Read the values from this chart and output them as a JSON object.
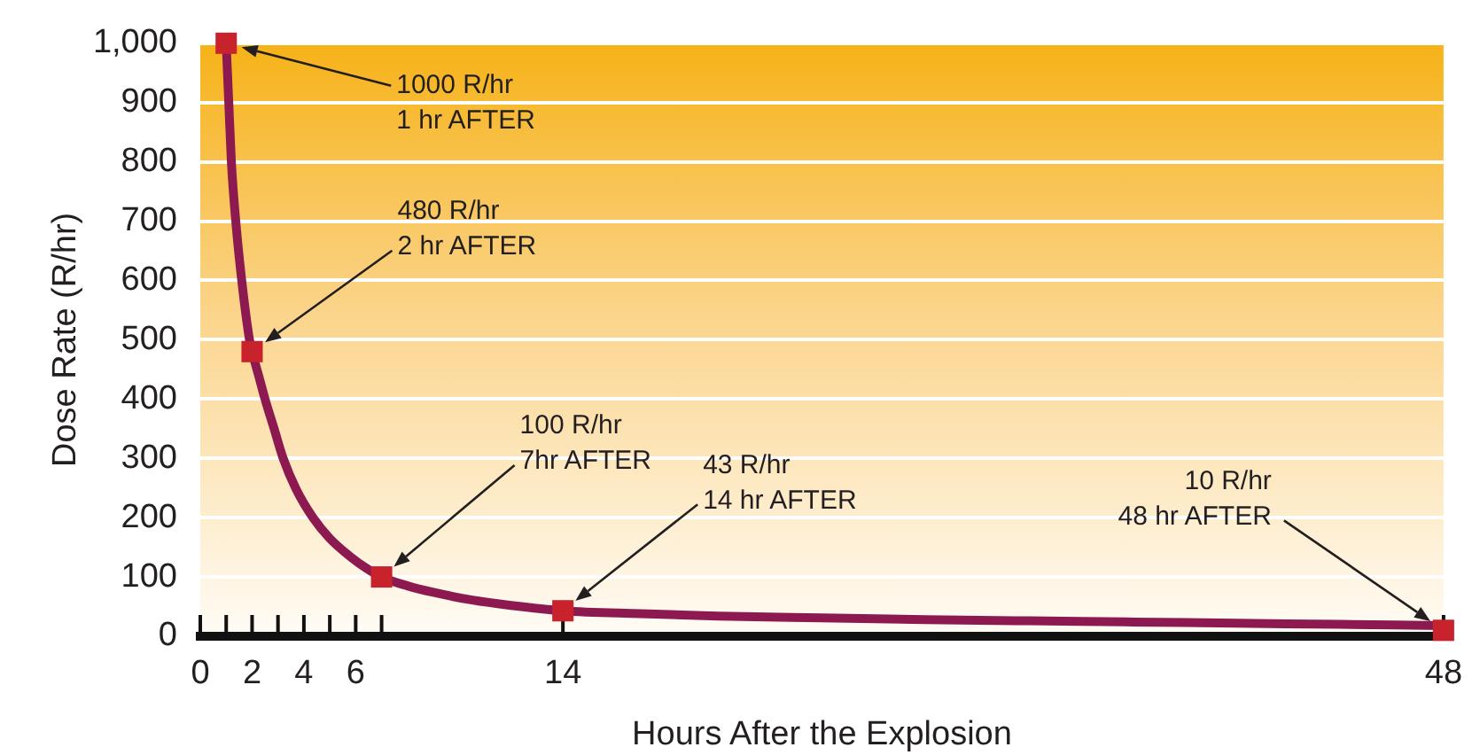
{
  "chart_data": {
    "type": "line",
    "xlabel": "Hours After the Explosion",
    "ylabel": "Dose Rate (R/hr)",
    "xlim": [
      0,
      48
    ],
    "xticks": [
      0,
      {
        "value": 1,
        "label": null
      },
      2,
      {
        "value": 3,
        "label": null
      },
      4,
      {
        "value": 5,
        "label": null
      },
      6,
      {
        "value": 7,
        "label": null
      },
      14,
      48
    ],
    "ylim": [
      0,
      1000
    ],
    "yticks": [
      0,
      100,
      200,
      300,
      400,
      500,
      600,
      700,
      800,
      900,
      {
        "value": 1000,
        "label": "1,000"
      }
    ],
    "grid": "y",
    "line_style": "solid",
    "series": [
      {
        "color": "#8c1a50",
        "marker": "none",
        "x": [
          1,
          1.1,
          1.2,
          1.37,
          1.6,
          1.9,
          2,
          2.25,
          2.5,
          2.85,
          3.2,
          3.7,
          4.35,
          5,
          5.8,
          6.4,
          7,
          8,
          9,
          10.5,
          12,
          14,
          17,
          20,
          24,
          28,
          32,
          36,
          40,
          44,
          48
        ],
        "values": [
          1000,
          900,
          800,
          700,
          600,
          500,
          480,
          440,
          400,
          350,
          300,
          248,
          200,
          165,
          134,
          115,
          100,
          85,
          74,
          61,
          52,
          43,
          38,
          34,
          31,
          28,
          26,
          24,
          22,
          20,
          18
        ]
      },
      {
        "type": "scatter",
        "color": "#c8232c",
        "marker": "square",
        "x": [
          1,
          2,
          7,
          14,
          48
        ],
        "values": [
          1000,
          480,
          100,
          43,
          10
        ]
      }
    ],
    "annotations": [
      "1000 R/hr\n1 hr AFTER",
      "480 R/hr\n2 hr AFTER",
      "100 R/hr\n7hr AFTER",
      "43 R/hr\n14 hr AFTER",
      "10 R/hr\n48 hr AFTER"
    ]
  }
}
